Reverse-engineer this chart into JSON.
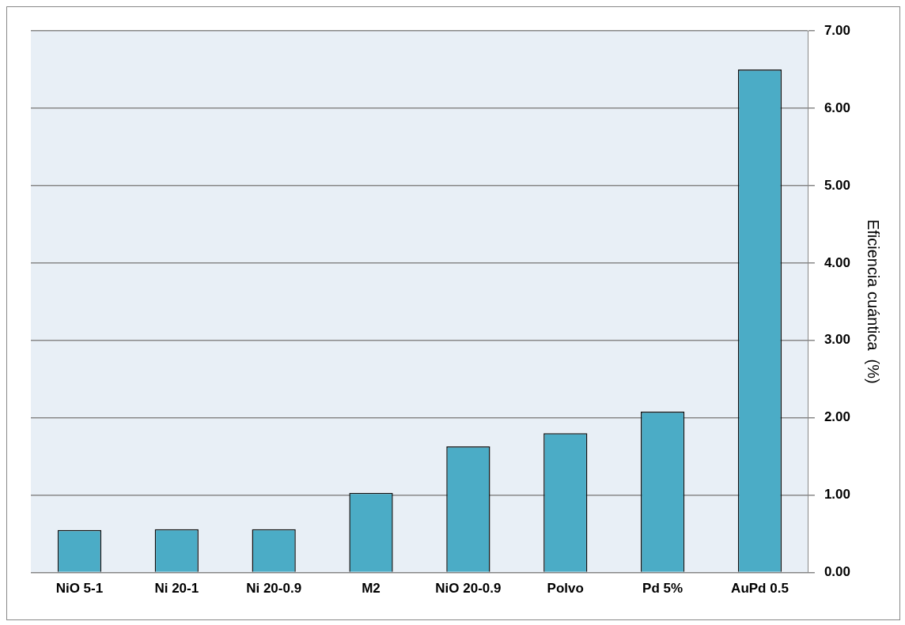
{
  "chart_data": {
    "type": "bar",
    "ylabel": "Eficiencia cuántica  (%)",
    "categories": [
      "NiO 5-1",
      "Ni 20-1",
      "Ni 20-0.9",
      "M2",
      "NiO 20-0.9",
      "Polvo",
      "Pd 5%",
      "AuPd 0.5"
    ],
    "values": [
      0.55,
      0.56,
      0.56,
      1.03,
      1.63,
      1.8,
      2.08,
      6.5
    ],
    "color": "#4bacc6",
    "ylim": [
      0,
      7
    ],
    "yticks": [
      {
        "value": 0,
        "label": "0.00"
      },
      {
        "value": 1,
        "label": "1.00"
      },
      {
        "value": 2,
        "label": "2.00"
      },
      {
        "value": 3,
        "label": "3.00"
      },
      {
        "value": 4,
        "label": "4.00"
      },
      {
        "value": 5,
        "label": "5.00"
      },
      {
        "value": 6,
        "label": "6.00"
      },
      {
        "value": 7,
        "label": "7.00"
      }
    ],
    "grid": "y",
    "legend": false
  }
}
